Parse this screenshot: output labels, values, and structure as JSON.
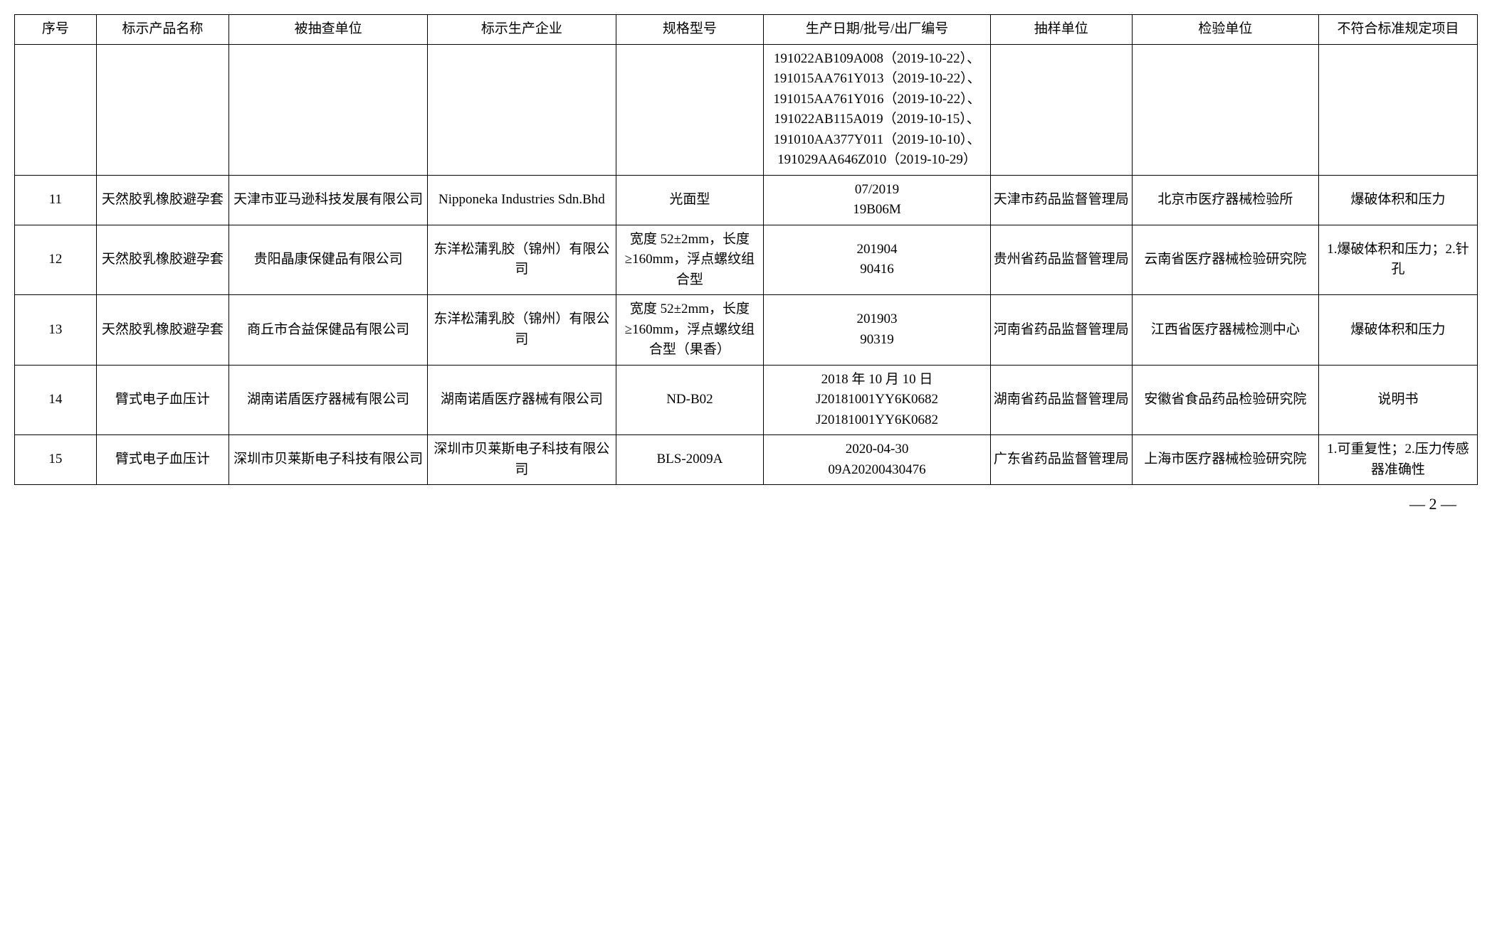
{
  "table": {
    "columns": [
      {
        "label": "序号",
        "width": "5.3%"
      },
      {
        "label": "标示产品名称",
        "width": "8.6%"
      },
      {
        "label": "被抽查单位",
        "width": "12.9%"
      },
      {
        "label": "标示生产企业",
        "width": "12.2%"
      },
      {
        "label": "规格型号",
        "width": "9.6%"
      },
      {
        "label": "生产日期/批号/出厂编号",
        "width": "14.7%"
      },
      {
        "label": "抽样单位",
        "width": "9.2%"
      },
      {
        "label": "检验单位",
        "width": "12.1%"
      },
      {
        "label": "不符合标准规定项目",
        "width": "10.3%"
      }
    ],
    "rows": [
      {
        "c0": "",
        "c1": "",
        "c2": "",
        "c3": "",
        "c4": "",
        "c5": "191022AB109A008（2019-10-22）、191015AA761Y013（2019-10-22）、191015AA761Y016（2019-10-22）、191022AB115A019（2019-10-15）、191010AA377Y011（2019-10-10）、191029AA646Z010（2019-10-29）",
        "c6": "",
        "c7": "",
        "c8": ""
      },
      {
        "c0": "11",
        "c1": "天然胶乳橡胶避孕套",
        "c2": "天津市亚马逊科技发展有限公司",
        "c3": "Nipponeka Industries Sdn.Bhd",
        "c4": "光面型",
        "c5": "07/2019\n19B06M",
        "c6": "天津市药品监督管理局",
        "c7": "北京市医疗器械检验所",
        "c8": "爆破体积和压力"
      },
      {
        "c0": "12",
        "c1": "天然胶乳橡胶避孕套",
        "c2": "贵阳晶康保健品有限公司",
        "c3": "东洋松蒲乳胶（锦州）有限公司",
        "c4": "宽度 52±2mm，长度≥160mm，浮点螺纹组合型",
        "c5": "201904\n90416",
        "c6": "贵州省药品监督管理局",
        "c7": "云南省医疗器械检验研究院",
        "c8": "1.爆破体积和压力；2.针孔"
      },
      {
        "c0": "13",
        "c1": "天然胶乳橡胶避孕套",
        "c2": "商丘市合益保健品有限公司",
        "c3": "东洋松蒲乳胶（锦州）有限公司",
        "c4": "宽度 52±2mm，长度≥160mm，浮点螺纹组合型（果香）",
        "c5": "201903\n90319",
        "c6": "河南省药品监督管理局",
        "c7": "江西省医疗器械检测中心",
        "c8": "爆破体积和压力"
      },
      {
        "c0": "14",
        "c1": "臂式电子血压计",
        "c2": "湖南诺盾医疗器械有限公司",
        "c3": "湖南诺盾医疗器械有限公司",
        "c4": "ND-B02",
        "c5": "2018 年 10 月 10 日\nJ20181001YY6K0682\nJ20181001YY6K0682",
        "c6": "湖南省药品监督管理局",
        "c7": "安徽省食品药品检验研究院",
        "c8": "说明书"
      },
      {
        "c0": "15",
        "c1": "臂式电子血压计",
        "c2": "深圳市贝莱斯电子科技有限公司",
        "c3": "深圳市贝莱斯电子科技有限公司",
        "c4": "BLS-2009A",
        "c5": "2020-04-30\n09A20200430476",
        "c6": "广东省药品监督管理局",
        "c7": "上海市医疗器械检验研究院",
        "c8": "1.可重复性；2.压力传感器准确性"
      }
    ]
  },
  "page_number": "— 2 —"
}
